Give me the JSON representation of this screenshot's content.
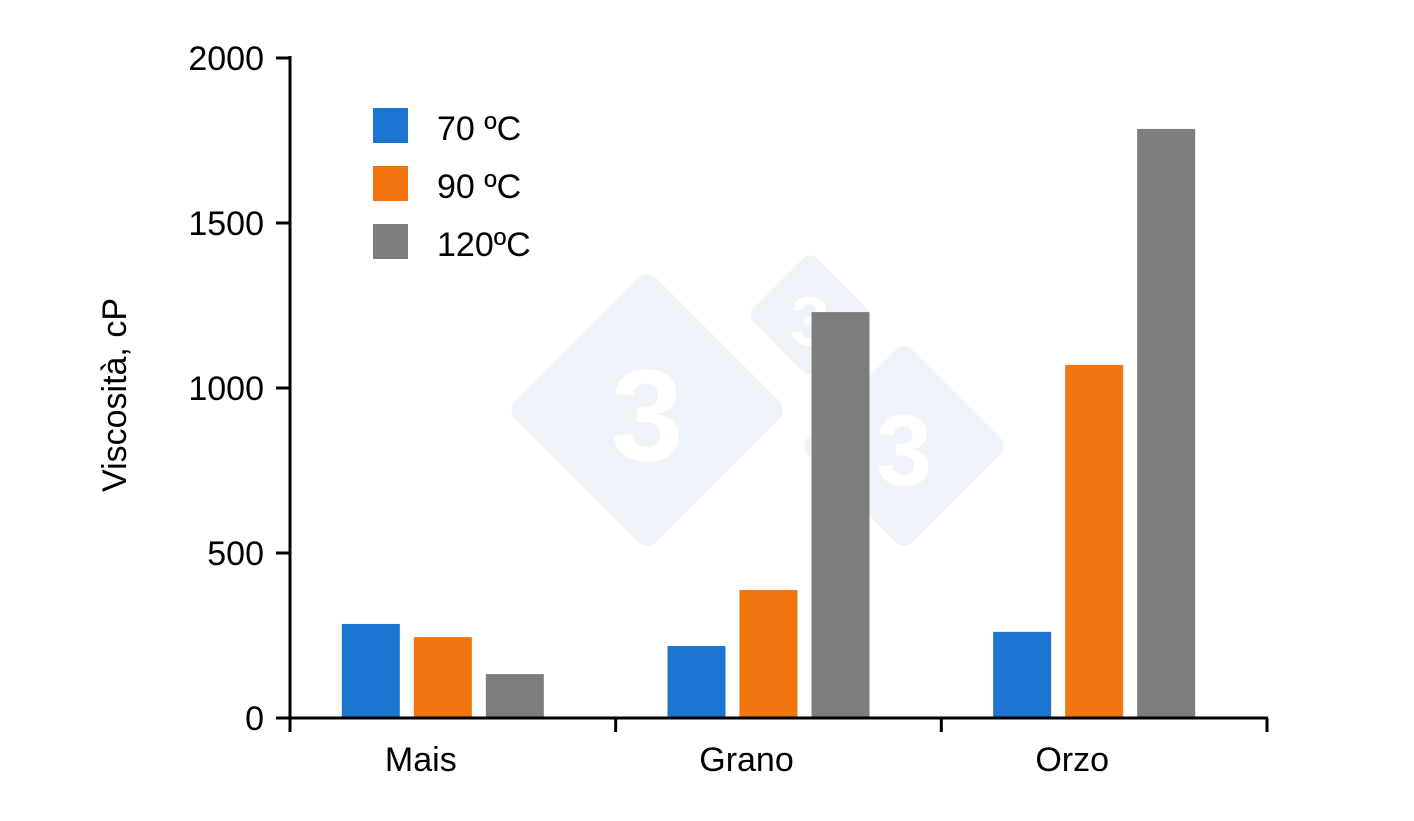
{
  "chart_data": {
    "type": "bar",
    "title": "",
    "xlabel": "",
    "ylabel": "Viscosità, cP",
    "ylim": [
      0,
      2000
    ],
    "yticks": [
      0,
      500,
      1000,
      1500,
      2000
    ],
    "categories": [
      "Mais",
      "Grano",
      "Orzo"
    ],
    "series": [
      {
        "name": "70 ºC",
        "color": "#1b75d0",
        "values": [
          285,
          218,
          261
        ]
      },
      {
        "name": "90 ºC",
        "color": "#f2740e",
        "values": [
          245,
          388,
          1070
        ]
      },
      {
        "name": "120ºC",
        "color": "#7d7d7d",
        "values": [
          133,
          1230,
          1785
        ]
      }
    ],
    "legend_position": "upper-left inside",
    "grid": false
  }
}
